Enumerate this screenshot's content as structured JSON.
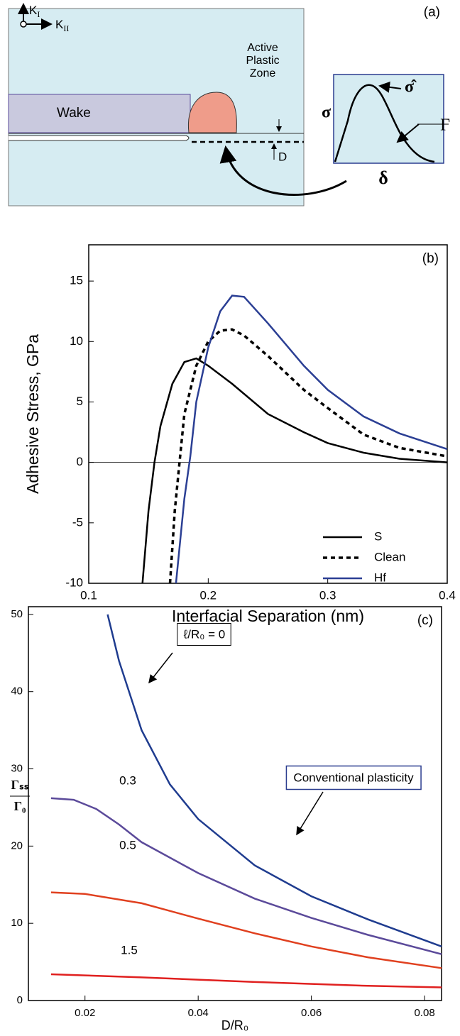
{
  "panel_a": {
    "label": "(a)",
    "k_i": {
      "symbol": "K",
      "subscript": "I"
    },
    "k_ii": {
      "symbol": "K",
      "subscript": "II"
    },
    "zone": [
      "Active",
      "Plastic",
      "Zone"
    ],
    "wake": "Wake",
    "d": "D",
    "sigma": "σ",
    "sigma_hat": "σ̂",
    "gamma": "Γ",
    "delta": "δ"
  },
  "chart_data": [
    {
      "type": "line",
      "panel_label": "(b)",
      "x_label": "Interfacial Separation (nm)",
      "y_label": "Adhesive Stress,  GPa",
      "xlim": [
        0.1,
        0.4
      ],
      "xticks": [
        0.1,
        0.2,
        0.3,
        0.4
      ],
      "ylim": [
        -10,
        18
      ],
      "yticks": [
        -10,
        -5,
        0,
        5,
        10,
        15
      ],
      "zero_line": true,
      "legend": "lower right",
      "series": [
        {
          "name": "S",
          "color": "#000000",
          "style": "solid",
          "x": [
            0.145,
            0.15,
            0.155,
            0.16,
            0.17,
            0.18,
            0.19,
            0.2,
            0.22,
            0.25,
            0.28,
            0.3,
            0.33,
            0.36,
            0.4
          ],
          "values": [
            -10,
            -4,
            0,
            3,
            6.5,
            8.3,
            8.6,
            8,
            6.5,
            4,
            2.5,
            1.6,
            0.8,
            0.3,
            0
          ]
        },
        {
          "name": "Clean",
          "color": "#000000",
          "style": "dashed",
          "x": [
            0.168,
            0.172,
            0.176,
            0.18,
            0.19,
            0.2,
            0.21,
            0.22,
            0.23,
            0.25,
            0.28,
            0.3,
            0.33,
            0.36,
            0.4
          ],
          "values": [
            -10,
            -4,
            0,
            4,
            8,
            10,
            10.9,
            11,
            10.5,
            8.8,
            6,
            4.5,
            2.3,
            1.2,
            0.5
          ]
        },
        {
          "name": "Hf",
          "color": "#2b3f94",
          "style": "solid",
          "x": [
            0.173,
            0.18,
            0.185,
            0.19,
            0.2,
            0.21,
            0.22,
            0.23,
            0.25,
            0.28,
            0.3,
            0.33,
            0.36,
            0.4
          ],
          "values": [
            -10,
            -3,
            0.5,
            5,
            9.5,
            12.5,
            13.8,
            13.7,
            11.5,
            8,
            6,
            3.8,
            2.4,
            1.1
          ]
        }
      ]
    },
    {
      "type": "line",
      "panel_label": "(c)",
      "x_label": "D/R₀",
      "y_label": {
        "numerator": "Γₛₛ",
        "denominator": "Γ₀"
      },
      "xlim": [
        0.01,
        0.083
      ],
      "xticks": [
        0.02,
        0.04,
        0.06,
        0.08
      ],
      "ylim": [
        0,
        51
      ],
      "yticks": [
        0,
        10,
        20,
        30,
        40,
        50
      ],
      "annotation": "Conventional plasticity",
      "series": [
        {
          "name": "ℓ/R₀ = 0",
          "color": "#1f3c8f",
          "style": "solid",
          "x": [
            0.024,
            0.026,
            0.03,
            0.035,
            0.04,
            0.05,
            0.06,
            0.07,
            0.083
          ],
          "values": [
            50,
            44,
            35,
            28,
            23.5,
            17.5,
            13.5,
            10.5,
            7
          ]
        },
        {
          "name": "0.3",
          "color": "#5b4a9a",
          "style": "solid",
          "x": [
            0.014,
            0.018,
            0.022,
            0.026,
            0.03,
            0.04,
            0.05,
            0.06,
            0.07,
            0.083
          ],
          "values": [
            26.2,
            26,
            24.8,
            22.8,
            20.5,
            16.5,
            13.2,
            10.7,
            8.5,
            6
          ]
        },
        {
          "name": "0.5",
          "color": "#e0401f",
          "style": "solid",
          "x": [
            0.014,
            0.02,
            0.03,
            0.04,
            0.05,
            0.06,
            0.07,
            0.083
          ],
          "values": [
            14,
            13.8,
            12.6,
            10.6,
            8.7,
            7,
            5.6,
            4.2
          ]
        },
        {
          "name": "1.5",
          "color": "#e0201f",
          "style": "solid",
          "x": [
            0.014,
            0.03,
            0.05,
            0.07,
            0.083
          ],
          "values": [
            3.4,
            3,
            2.4,
            1.9,
            1.7
          ]
        }
      ]
    }
  ]
}
